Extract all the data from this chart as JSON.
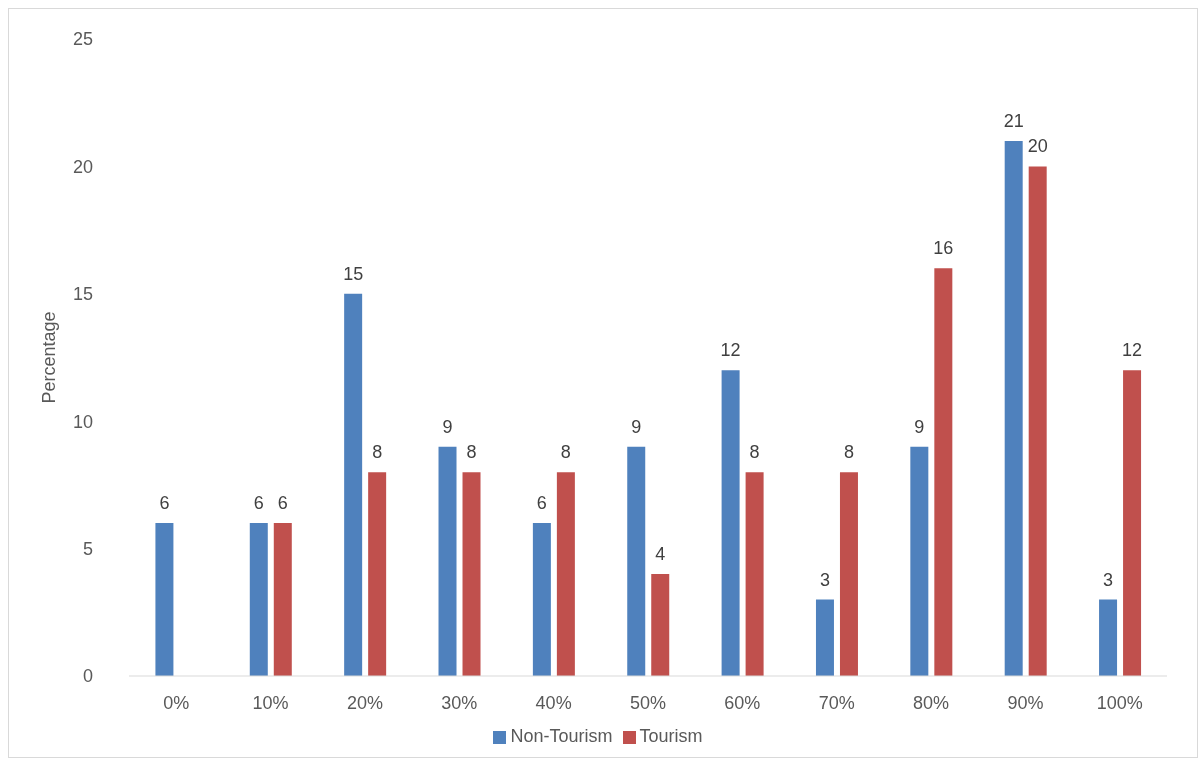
{
  "chart_data": {
    "type": "bar",
    "ylabel": "Percentage",
    "categories": [
      "0%",
      "10%",
      "20%",
      "30%",
      "40%",
      "50%",
      "60%",
      "70%",
      "80%",
      "90%",
      "100%"
    ],
    "series": [
      {
        "name": "Non-Tourism",
        "color": "#4f81bd",
        "values": [
          6,
          6,
          15,
          9,
          6,
          9,
          12,
          3,
          9,
          21,
          3
        ]
      },
      {
        "name": "Tourism",
        "color": "#c0504d",
        "values": [
          null,
          6,
          8,
          8,
          8,
          4,
          8,
          8,
          16,
          20,
          12
        ]
      }
    ],
    "ylim": [
      0,
      25
    ],
    "yticks": [
      0,
      5,
      10,
      15,
      20,
      25
    ],
    "grid": false,
    "legend": "bottom",
    "data_labels": true
  }
}
